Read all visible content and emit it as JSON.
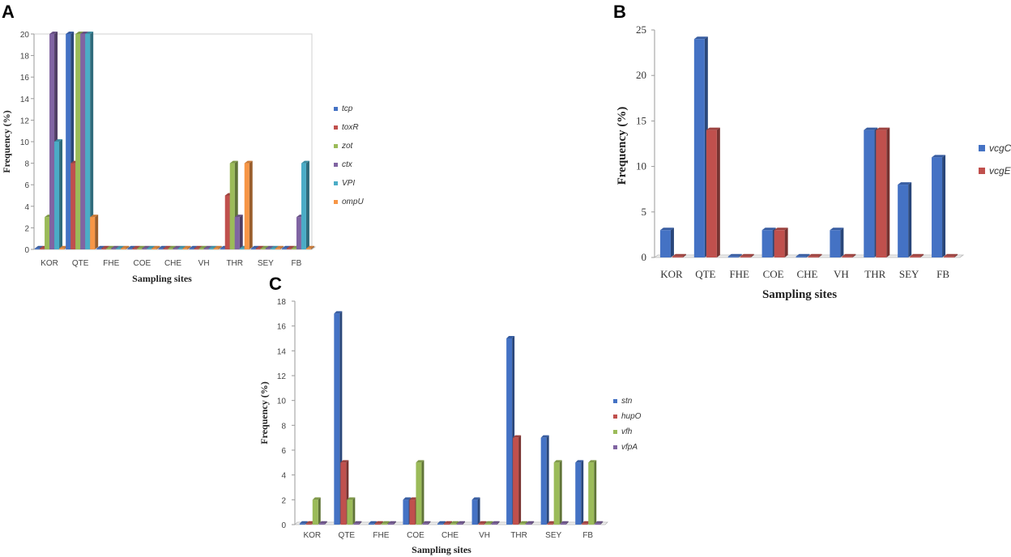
{
  "chart_data": [
    {
      "panel": "A",
      "type": "bar",
      "categories": [
        "KOR",
        "QTE",
        "FHE",
        "COE",
        "CHE",
        "VH",
        "THR",
        "SEY",
        "FB"
      ],
      "series": [
        {
          "name": "tcp",
          "color": "#4472c4",
          "values": [
            0,
            20,
            0,
            0,
            0,
            0,
            0,
            0,
            0
          ]
        },
        {
          "name": "toxR",
          "color": "#c0504d",
          "values": [
            0,
            8,
            0,
            0,
            0,
            0,
            5,
            0,
            0
          ]
        },
        {
          "name": "zot",
          "color": "#9bbb59",
          "values": [
            3,
            20,
            0,
            0,
            0,
            0,
            8,
            0,
            0
          ]
        },
        {
          "name": "ctx",
          "color": "#8064a2",
          "values": [
            20,
            20,
            0,
            0,
            0,
            0,
            3,
            0,
            3
          ]
        },
        {
          "name": "VPI",
          "color": "#4bacc6",
          "values": [
            10,
            20,
            0,
            0,
            0,
            0,
            0,
            0,
            8
          ]
        },
        {
          "name": "ompU",
          "color": "#f79646",
          "values": [
            0,
            3,
            0,
            0,
            0,
            0,
            8,
            0,
            0
          ]
        }
      ],
      "ylim": [
        0,
        20
      ],
      "yticks": [
        "0",
        "2",
        "4",
        "6",
        "8",
        "10",
        "12",
        "14",
        "16",
        "18",
        "20"
      ],
      "xlabel": "Sampling sites",
      "ylabel": "Frequency (%)",
      "legend": "right"
    },
    {
      "panel": "B",
      "type": "bar",
      "categories": [
        "KOR",
        "QTE",
        "FHE",
        "COE",
        "CHE",
        "VH",
        "THR",
        "SEY",
        "FB"
      ],
      "series": [
        {
          "name": "vcgC",
          "color": "#4472c4",
          "values": [
            3,
            24,
            0,
            3,
            0,
            3,
            14,
            8,
            11
          ]
        },
        {
          "name": "vcgE",
          "color": "#c0504d",
          "values": [
            0,
            14,
            0,
            3,
            0,
            0,
            14,
            0,
            0
          ]
        }
      ],
      "ylim": [
        0,
        25
      ],
      "yticks": [
        "0",
        "5",
        "10",
        "15",
        "20",
        "25"
      ],
      "xlabel": "Sampling sites",
      "ylabel": "Frequency (%)",
      "legend": "right"
    },
    {
      "panel": "C",
      "type": "bar",
      "categories": [
        "KOR",
        "QTE",
        "FHE",
        "COE",
        "CHE",
        "VH",
        "THR",
        "SEY",
        "FB"
      ],
      "series": [
        {
          "name": "stn",
          "color": "#4472c4",
          "values": [
            0,
            17,
            0,
            2,
            0,
            2,
            15,
            7,
            5
          ]
        },
        {
          "name": "hupO",
          "color": "#c0504d",
          "values": [
            0,
            5,
            0,
            2,
            0,
            0,
            7,
            0,
            0
          ]
        },
        {
          "name": "vfh",
          "color": "#9bbb59",
          "values": [
            2,
            2,
            0,
            5,
            0,
            0,
            0,
            5,
            5
          ]
        },
        {
          "name": "vfpA",
          "color": "#8064a2",
          "values": [
            0,
            0,
            0,
            0,
            0,
            0,
            0,
            0,
            0
          ]
        }
      ],
      "ylim": [
        0,
        18
      ],
      "yticks": [
        "0",
        "2",
        "4",
        "6",
        "8",
        "10",
        "12",
        "14",
        "16",
        "18"
      ],
      "xlabel": "Sampling sites",
      "ylabel": "Frequency (%)",
      "legend": "right"
    }
  ]
}
